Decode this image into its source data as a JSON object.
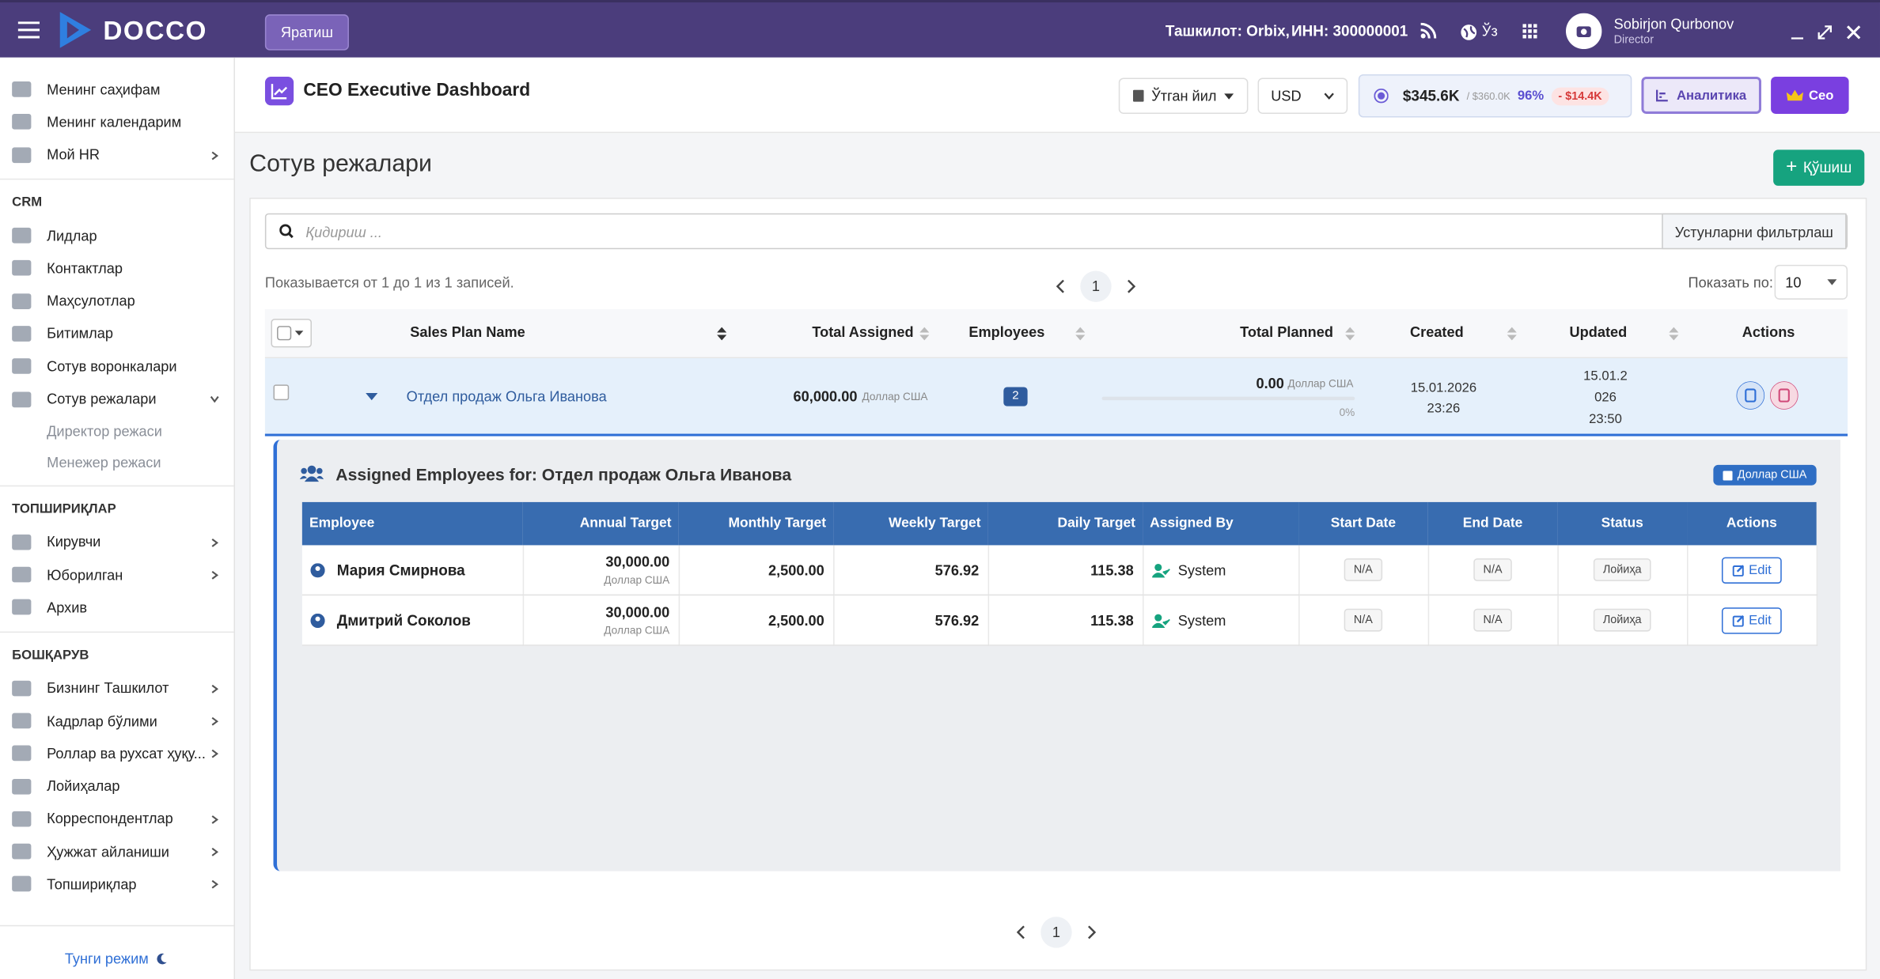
{
  "header": {
    "brand": "DOCCO",
    "create_button": "Яратиш",
    "organization": "Ташкилот: Orbix,",
    "inn": "ИНН: 300000001",
    "language": "Ўз",
    "user_name": "Sobirjon Qurbonov",
    "user_role": "Director"
  },
  "sidebar": {
    "groups": [
      {
        "items": [
          {
            "label": "Менинг саҳифам"
          },
          {
            "label": "Менинг календарим"
          },
          {
            "label": "Мой HR",
            "submenu": true
          }
        ]
      },
      {
        "title": "CRM",
        "items": [
          {
            "label": "Лидлар"
          },
          {
            "label": "Контактлар"
          },
          {
            "label": "Маҳсулотлар"
          },
          {
            "label": "Битимлар"
          },
          {
            "label": "Сотув воронкалари"
          },
          {
            "label": "Сотув режалари",
            "submenu": true,
            "expanded": true,
            "children": [
              "Директор режаси",
              "Менежер режаси"
            ]
          }
        ]
      },
      {
        "title": "ТОПШИРИҚЛАР",
        "items": [
          {
            "label": "Кирувчи",
            "submenu": true
          },
          {
            "label": "Юборилган",
            "submenu": true
          },
          {
            "label": "Архив"
          }
        ]
      },
      {
        "title": "БОШҚАРУВ",
        "items": [
          {
            "label": "Бизнинг Ташкилот",
            "submenu": true
          },
          {
            "label": "Кадрлар бўлими",
            "submenu": true
          },
          {
            "label": "Роллар ва рухсат ҳуқу...",
            "submenu": true
          },
          {
            "label": "Лойиҳалар"
          },
          {
            "label": "Корреспондентлар",
            "submenu": true
          },
          {
            "label": "Ҳужжат айланиши",
            "submenu": true
          },
          {
            "label": "Топшириқлар",
            "submenu": true
          }
        ]
      }
    ],
    "night_mode": "Тунги режим"
  },
  "toolbar": {
    "title": "CEO Executive Dashboard",
    "period": "Ўтган йил",
    "currency": "USD",
    "kpi": {
      "actual": "$345.6K",
      "target": "/ $360.0K",
      "percent": "96%",
      "gap": "- $14.4K"
    },
    "analytics_button": "Аналитика",
    "role_button": "Ceo"
  },
  "page": {
    "title": "Сотув режалари",
    "add_button": "Қўшиш",
    "search_placeholder": "Қидириш ...",
    "filter_columns_button": "Устунларни фильтрлаш",
    "records_info": "Показывается от 1 до 1 из 1 записей.",
    "current_page": "1",
    "page_size_label": "Показать по:",
    "page_size": "10"
  },
  "table": {
    "columns": [
      "Sales Plan Name",
      "Total Assigned",
      "Employees",
      "Total Planned",
      "Created",
      "Updated",
      "Actions"
    ],
    "rows": [
      {
        "name": "Отдел продаж Ольга Иванова",
        "total_assigned": "60,000.00",
        "assigned_currency": "Доллар США",
        "employees": "2",
        "total_planned": "0.00",
        "planned_currency": "Доллар США",
        "planned_percent": "0%",
        "created": "15.01.2026 23:26",
        "updated": "15.01.2026 23:50"
      }
    ]
  },
  "details": {
    "title": "Assigned Employees for: Отдел продаж Ольга Иванова",
    "currency_badge": "Доллар США",
    "columns": [
      "Employee",
      "Annual Target",
      "Monthly Target",
      "Weekly Target",
      "Daily Target",
      "Assigned By",
      "Start Date",
      "End Date",
      "Status",
      "Actions"
    ],
    "rows": [
      {
        "employee": "Мария Смирнова",
        "annual_target": "30,000.00",
        "annual_currency": "Доллар США",
        "monthly_target": "2,500.00",
        "weekly_target": "576.92",
        "daily_target": "115.38",
        "assigned_by": "System",
        "start_date": "N/A",
        "end_date": "N/A",
        "status": "Лойиҳа",
        "action": "Edit"
      },
      {
        "employee": "Дмитрий Соколов",
        "annual_target": "30,000.00",
        "annual_currency": "Доллар США",
        "monthly_target": "2,500.00",
        "weekly_target": "576.92",
        "daily_target": "115.38",
        "assigned_by": "System",
        "start_date": "N/A",
        "end_date": "N/A",
        "status": "Лойиҳа",
        "action": "Edit"
      }
    ]
  }
}
